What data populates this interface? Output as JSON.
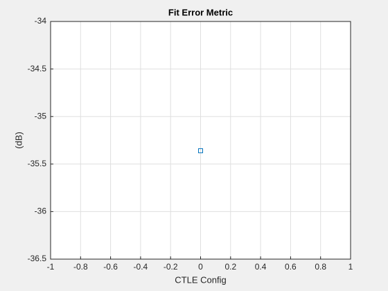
{
  "chart_data": {
    "type": "scatter",
    "title": "Fit Error Metric",
    "xlabel": "CTLE Config",
    "ylabel": "(dB)",
    "x": [
      0
    ],
    "values": [
      -35.36
    ],
    "color": "#0072bd",
    "marker": "square",
    "xlim": [
      -1,
      1
    ],
    "xticks": [
      -1,
      -0.8,
      -0.6,
      -0.4,
      -0.2,
      0,
      0.2,
      0.4,
      0.6,
      0.8,
      1
    ],
    "ylim": [
      -36.5,
      -34
    ],
    "yticks": [
      -36.5,
      -36,
      -35.5,
      -35,
      -34.5,
      -34
    ],
    "grid": true
  }
}
